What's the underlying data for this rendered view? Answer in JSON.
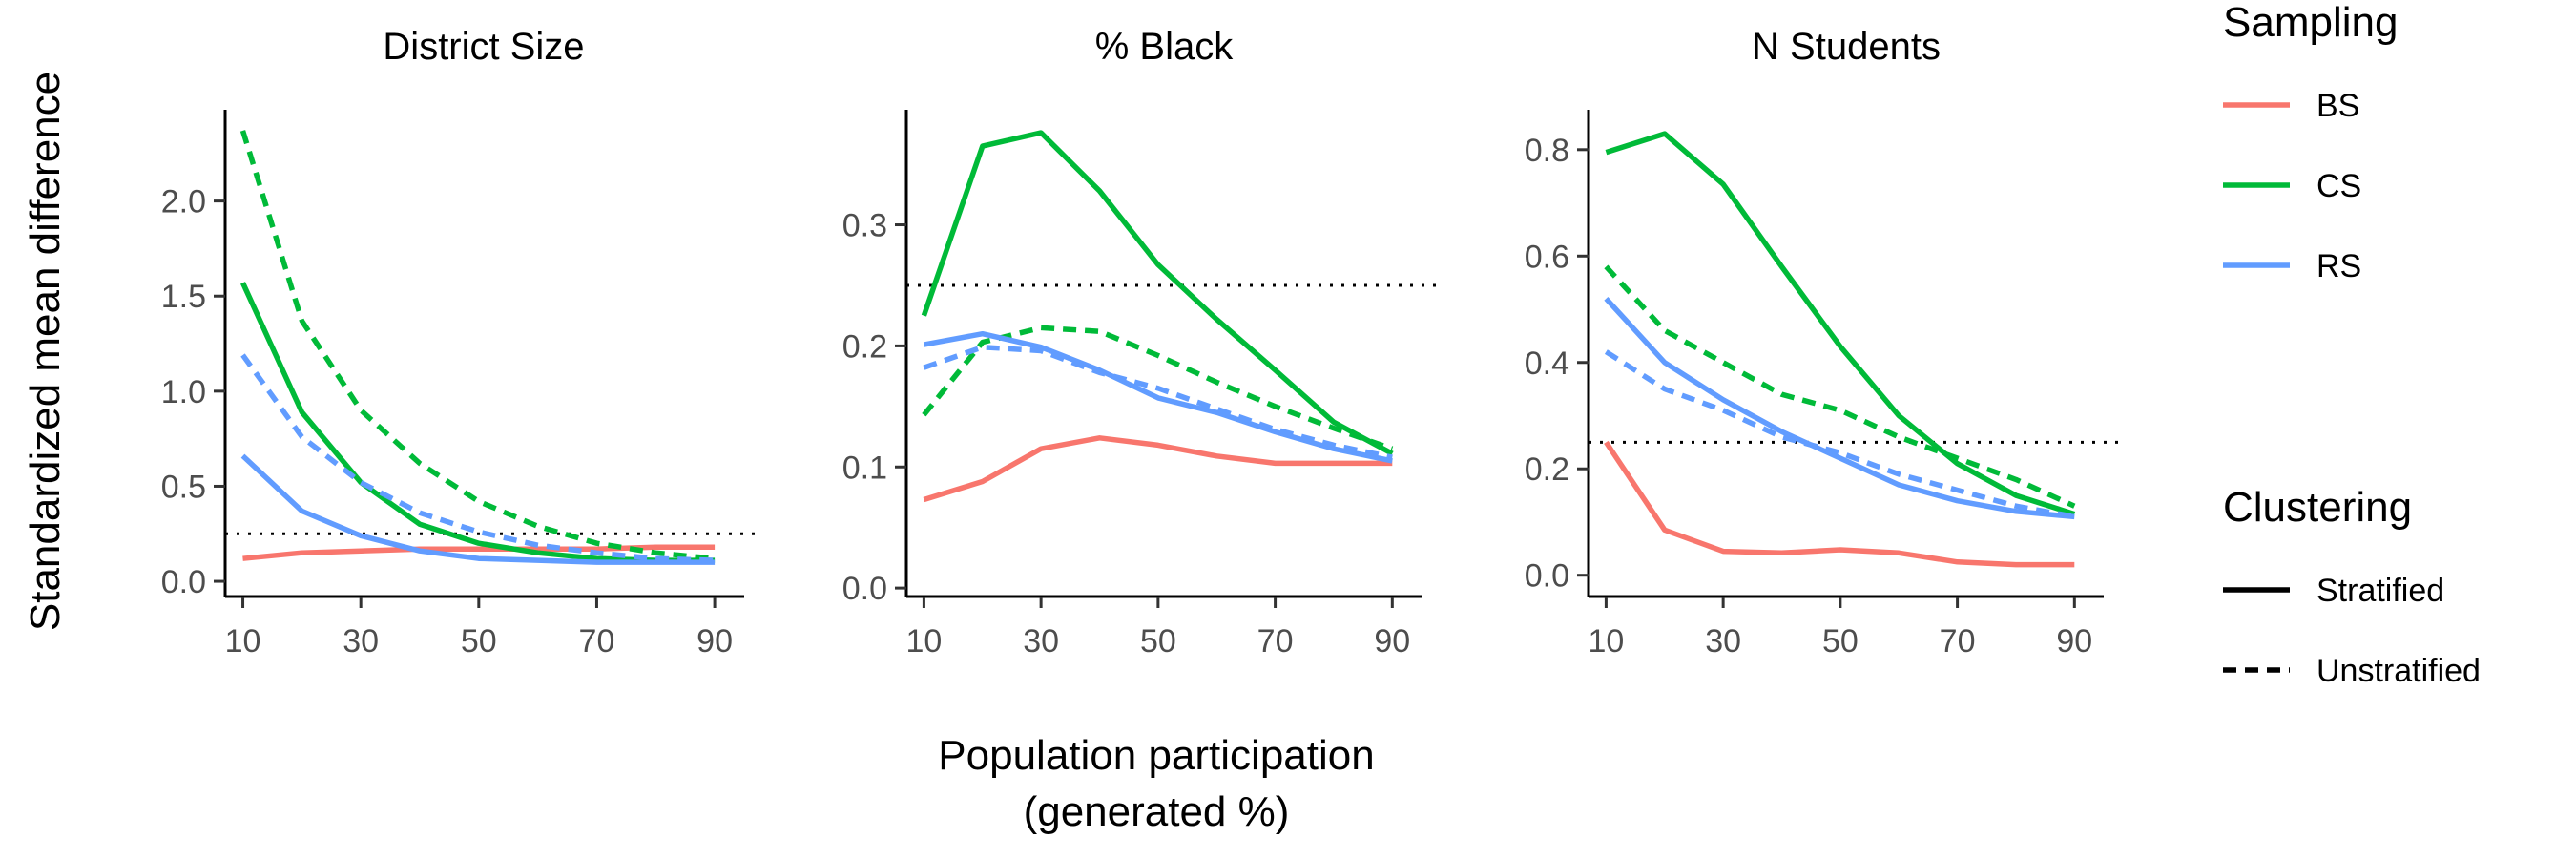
{
  "chart_data": [
    {
      "type": "line",
      "title": "District Size",
      "ylabel": "Standardized mean difference",
      "xlabel": "",
      "x": [
        10,
        20,
        30,
        40,
        50,
        60,
        70,
        80,
        90
      ],
      "xticks": [
        10,
        30,
        50,
        70,
        90
      ],
      "xlim": [
        7,
        95
      ],
      "ylim": [
        -0.08,
        2.48
      ],
      "yticks": [
        0.0,
        0.5,
        1.0,
        1.5,
        2.0
      ],
      "ytick_labels": [
        "0.0",
        "0.5",
        "1.0",
        "1.5",
        "2.0"
      ],
      "reference_line": 0.25,
      "grid": false,
      "series": [
        {
          "sampling": "BS",
          "clustering": "Stratified",
          "values": [
            0.12,
            0.15,
            0.16,
            0.17,
            0.17,
            0.17,
            0.17,
            0.18,
            0.18
          ]
        },
        {
          "sampling": "CS",
          "clustering": "Stratified",
          "values": [
            1.57,
            0.89,
            0.52,
            0.3,
            0.2,
            0.15,
            0.12,
            0.11,
            0.11
          ]
        },
        {
          "sampling": "CS",
          "clustering": "Unstratified",
          "values": [
            2.37,
            1.37,
            0.9,
            0.62,
            0.42,
            0.29,
            0.2,
            0.15,
            0.12
          ]
        },
        {
          "sampling": "RS",
          "clustering": "Stratified",
          "values": [
            0.66,
            0.37,
            0.24,
            0.16,
            0.12,
            0.11,
            0.1,
            0.1,
            0.1
          ]
        },
        {
          "sampling": "RS",
          "clustering": "Unstratified",
          "values": [
            1.19,
            0.76,
            0.52,
            0.36,
            0.26,
            0.19,
            0.15,
            0.12,
            0.11
          ]
        }
      ]
    },
    {
      "type": "line",
      "title": "% Black",
      "ylabel": "",
      "xlabel": "Population participation (generated %)",
      "x": [
        10,
        20,
        30,
        40,
        50,
        60,
        70,
        80,
        90
      ],
      "xticks": [
        10,
        30,
        50,
        70,
        90
      ],
      "xlim": [
        7,
        95
      ],
      "ylim": [
        -0.007,
        0.395
      ],
      "yticks": [
        0.0,
        0.1,
        0.2,
        0.3
      ],
      "ytick_labels": [
        "0.0",
        "0.1",
        "0.2",
        "0.3"
      ],
      "reference_line": 0.25,
      "grid": false,
      "series": [
        {
          "sampling": "BS",
          "clustering": "Stratified",
          "values": [
            0.073,
            0.088,
            0.115,
            0.124,
            0.118,
            0.109,
            0.103,
            0.103,
            0.103
          ]
        },
        {
          "sampling": "CS",
          "clustering": "Stratified",
          "values": [
            0.225,
            0.365,
            0.376,
            0.328,
            0.267,
            0.222,
            0.18,
            0.137,
            0.111
          ]
        },
        {
          "sampling": "CS",
          "clustering": "Unstratified",
          "values": [
            0.143,
            0.203,
            0.215,
            0.212,
            0.192,
            0.17,
            0.15,
            0.132,
            0.115
          ]
        },
        {
          "sampling": "RS",
          "clustering": "Stratified",
          "values": [
            0.201,
            0.21,
            0.199,
            0.18,
            0.157,
            0.145,
            0.129,
            0.115,
            0.105
          ]
        },
        {
          "sampling": "RS",
          "clustering": "Unstratified",
          "values": [
            0.182,
            0.199,
            0.196,
            0.178,
            0.165,
            0.148,
            0.131,
            0.118,
            0.108
          ]
        }
      ]
    },
    {
      "type": "line",
      "title": "N Students",
      "ylabel": "",
      "xlabel": "",
      "x": [
        10,
        20,
        30,
        40,
        50,
        60,
        70,
        80,
        90
      ],
      "xticks": [
        10,
        30,
        50,
        70,
        90
      ],
      "xlim": [
        7,
        95
      ],
      "ylim": [
        -0.04,
        0.875
      ],
      "yticks": [
        0.0,
        0.2,
        0.4,
        0.6,
        0.8
      ],
      "ytick_labels": [
        "0.0",
        "0.2",
        "0.4",
        "0.6",
        "0.8"
      ],
      "reference_line": 0.25,
      "grid": false,
      "series": [
        {
          "sampling": "BS",
          "clustering": "Stratified",
          "values": [
            0.25,
            0.085,
            0.045,
            0.042,
            0.048,
            0.042,
            0.025,
            0.02,
            0.02
          ]
        },
        {
          "sampling": "CS",
          "clustering": "Stratified",
          "values": [
            0.795,
            0.83,
            0.735,
            0.58,
            0.43,
            0.3,
            0.21,
            0.15,
            0.115
          ]
        },
        {
          "sampling": "CS",
          "clustering": "Unstratified",
          "values": [
            0.58,
            0.46,
            0.4,
            0.34,
            0.31,
            0.26,
            0.22,
            0.18,
            0.13
          ]
        },
        {
          "sampling": "RS",
          "clustering": "Stratified",
          "values": [
            0.52,
            0.4,
            0.33,
            0.27,
            0.22,
            0.17,
            0.14,
            0.12,
            0.11
          ]
        },
        {
          "sampling": "RS",
          "clustering": "Unstratified",
          "values": [
            0.42,
            0.35,
            0.31,
            0.26,
            0.23,
            0.19,
            0.16,
            0.13,
            0.11
          ]
        }
      ]
    }
  ],
  "axis_titles": {
    "y": "Standardized mean difference",
    "x_line1": "Population participation",
    "x_line2": "(generated %)"
  },
  "legend": {
    "position": "right",
    "sampling_title": "Sampling",
    "sampling_items": [
      {
        "label": "BS",
        "color": "#F8766D"
      },
      {
        "label": "CS",
        "color": "#00BA38"
      },
      {
        "label": "RS",
        "color": "#619CFF"
      }
    ],
    "clustering_title": "Clustering",
    "clustering_items": [
      {
        "label": "Stratified",
        "linetype": "solid"
      },
      {
        "label": "Unstratified",
        "linetype": "dashed"
      }
    ]
  },
  "colors": {
    "BS": "#F8766D",
    "CS": "#00BA38",
    "RS": "#619CFF"
  }
}
